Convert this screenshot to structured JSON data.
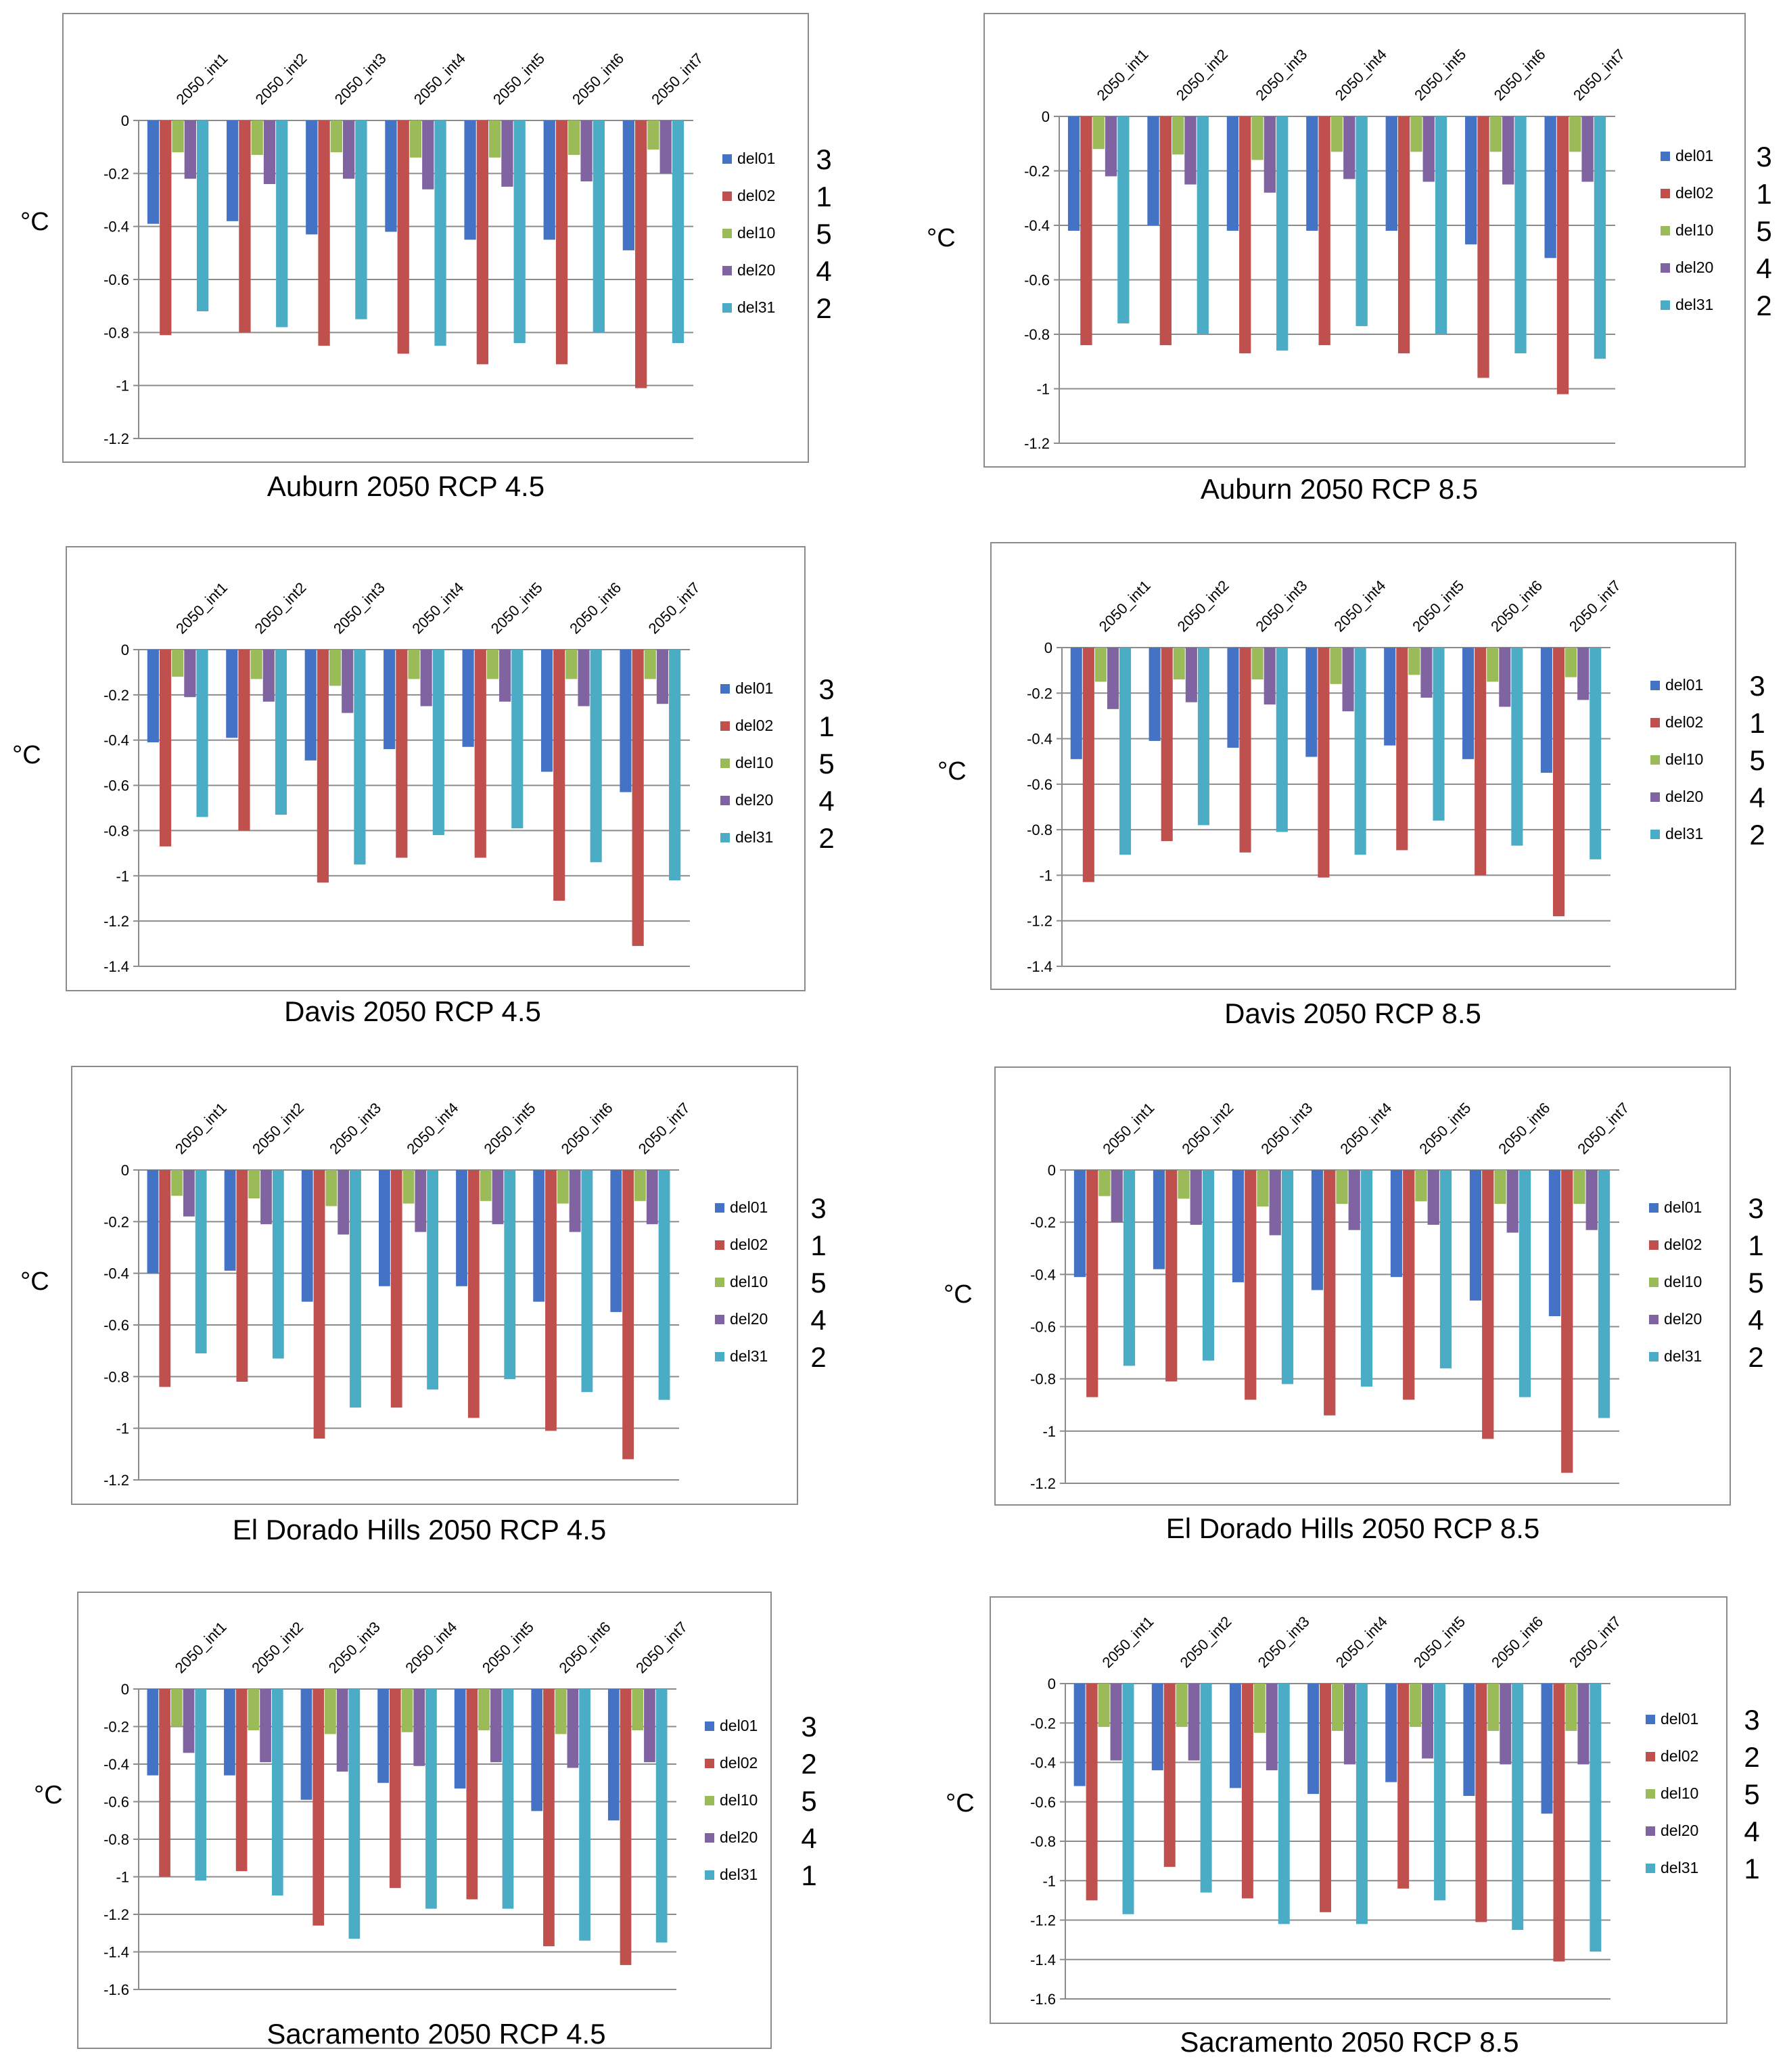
{
  "figure": {
    "colors": {
      "del01": "#4472C4",
      "del02": "#C0504D",
      "del10": "#9BBB59",
      "del20": "#8064A2",
      "del31": "#4BACC6",
      "grid": "#8C8C8C",
      "border": "#8C8C8C",
      "text": "#000000"
    }
  },
  "chart_data": [
    {
      "type": "bar",
      "title": "Auburn 2050 RCP 4.5",
      "ylabel": "°C",
      "categories": [
        "2050_int1",
        "2050_int2",
        "2050_int3",
        "2050_int4",
        "2050_int5",
        "2050_int6",
        "2050_int7"
      ],
      "ylim": [
        -1.2,
        0
      ],
      "ystep": 0.2,
      "ticks": [
        "0",
        "-0.2",
        "-0.4",
        "-0.6",
        "-0.8",
        "-1",
        "-1.2"
      ],
      "series": [
        {
          "name": "del01",
          "rank": "3",
          "values": [
            -0.39,
            -0.38,
            -0.43,
            -0.42,
            -0.45,
            -0.45,
            -0.49
          ]
        },
        {
          "name": "del02",
          "rank": "1",
          "values": [
            -0.81,
            -0.8,
            -0.85,
            -0.88,
            -0.92,
            -0.92,
            -1.01
          ]
        },
        {
          "name": "del10",
          "rank": "5",
          "values": [
            -0.12,
            -0.13,
            -0.12,
            -0.14,
            -0.14,
            -0.13,
            -0.11
          ]
        },
        {
          "name": "del20",
          "rank": "4",
          "values": [
            -0.22,
            -0.24,
            -0.22,
            -0.26,
            -0.25,
            -0.23,
            -0.2
          ]
        },
        {
          "name": "del31",
          "rank": "2",
          "values": [
            -0.72,
            -0.78,
            -0.75,
            -0.85,
            -0.84,
            -0.8,
            -0.84
          ]
        }
      ]
    },
    {
      "type": "bar",
      "title": "Auburn 2050 RCP 8.5",
      "ylabel": "°C",
      "categories": [
        "2050_int1",
        "2050_int2",
        "2050_int3",
        "2050_int4",
        "2050_int5",
        "2050_int6",
        "2050_int7"
      ],
      "ylim": [
        -1.2,
        0
      ],
      "ystep": 0.2,
      "ticks": [
        "0",
        "-0.2",
        "-0.4",
        "-0.6",
        "-0.8",
        "-1",
        "-1.2"
      ],
      "series": [
        {
          "name": "del01",
          "rank": "3",
          "values": [
            -0.42,
            -0.4,
            -0.42,
            -0.42,
            -0.42,
            -0.47,
            -0.52
          ]
        },
        {
          "name": "del02",
          "rank": "1",
          "values": [
            -0.84,
            -0.84,
            -0.87,
            -0.84,
            -0.87,
            -0.96,
            -1.02
          ]
        },
        {
          "name": "del10",
          "rank": "5",
          "values": [
            -0.12,
            -0.14,
            -0.16,
            -0.13,
            -0.13,
            -0.13,
            -0.13
          ]
        },
        {
          "name": "del20",
          "rank": "4",
          "values": [
            -0.22,
            -0.25,
            -0.28,
            -0.23,
            -0.24,
            -0.25,
            -0.24
          ]
        },
        {
          "name": "del31",
          "rank": "2",
          "values": [
            -0.76,
            -0.8,
            -0.86,
            -0.77,
            -0.8,
            -0.87,
            -0.89
          ]
        }
      ]
    },
    {
      "type": "bar",
      "title": "Davis 2050 RCP 4.5",
      "ylabel": "°C",
      "categories": [
        "2050_int1",
        "2050_int2",
        "2050_int3",
        "2050_int4",
        "2050_int5",
        "2050_int6",
        "2050_int7"
      ],
      "ylim": [
        -1.4,
        0
      ],
      "ystep": 0.2,
      "ticks": [
        "0",
        "-0.2",
        "-0.4",
        "-0.6",
        "-0.8",
        "-1",
        "-1.2",
        "-1.4"
      ],
      "series": [
        {
          "name": "del01",
          "rank": "3",
          "values": [
            -0.41,
            -0.39,
            -0.49,
            -0.44,
            -0.43,
            -0.54,
            -0.63
          ]
        },
        {
          "name": "del02",
          "rank": "1",
          "values": [
            -0.87,
            -0.8,
            -1.03,
            -0.92,
            -0.92,
            -1.11,
            -1.31
          ]
        },
        {
          "name": "del10",
          "rank": "5",
          "values": [
            -0.12,
            -0.13,
            -0.16,
            -0.13,
            -0.13,
            -0.13,
            -0.13
          ]
        },
        {
          "name": "del20",
          "rank": "4",
          "values": [
            -0.21,
            -0.23,
            -0.28,
            -0.25,
            -0.23,
            -0.25,
            -0.24
          ]
        },
        {
          "name": "del31",
          "rank": "2",
          "values": [
            -0.74,
            -0.73,
            -0.95,
            -0.82,
            -0.79,
            -0.94,
            -1.02
          ]
        }
      ]
    },
    {
      "type": "bar",
      "title": "Davis 2050 RCP 8.5",
      "ylabel": "°C",
      "categories": [
        "2050_int1",
        "2050_int2",
        "2050_int3",
        "2050_int4",
        "2050_int5",
        "2050_int6",
        "2050_int7"
      ],
      "ylim": [
        -1.4,
        0
      ],
      "ystep": 0.2,
      "ticks": [
        "0",
        "-0.2",
        "-0.4",
        "-0.6",
        "-0.8",
        "-1",
        "-1.2",
        "-1.4"
      ],
      "series": [
        {
          "name": "del01",
          "rank": "3",
          "values": [
            -0.49,
            -0.41,
            -0.44,
            -0.48,
            -0.43,
            -0.49,
            -0.55
          ]
        },
        {
          "name": "del02",
          "rank": "1",
          "values": [
            -1.03,
            -0.85,
            -0.9,
            -1.01,
            -0.89,
            -1.0,
            -1.18
          ]
        },
        {
          "name": "del10",
          "rank": "5",
          "values": [
            -0.15,
            -0.14,
            -0.14,
            -0.16,
            -0.12,
            -0.15,
            -0.13
          ]
        },
        {
          "name": "del20",
          "rank": "4",
          "values": [
            -0.27,
            -0.24,
            -0.25,
            -0.28,
            -0.22,
            -0.26,
            -0.23
          ]
        },
        {
          "name": "del31",
          "rank": "2",
          "values": [
            -0.91,
            -0.78,
            -0.81,
            -0.91,
            -0.76,
            -0.87,
            -0.93
          ]
        }
      ]
    },
    {
      "type": "bar",
      "title": "El Dorado Hills 2050 RCP 4.5",
      "ylabel": "°C",
      "categories": [
        "2050_int1",
        "2050_int2",
        "2050_int3",
        "2050_int4",
        "2050_int5",
        "2050_int6",
        "2050_int7"
      ],
      "ylim": [
        -1.2,
        0
      ],
      "ystep": 0.2,
      "ticks": [
        "0",
        "-0.2",
        "-0.4",
        "-0.6",
        "-0.8",
        "-1",
        "-1.2"
      ],
      "series": [
        {
          "name": "del01",
          "rank": "3",
          "values": [
            -0.4,
            -0.39,
            -0.51,
            -0.45,
            -0.45,
            -0.51,
            -0.55
          ]
        },
        {
          "name": "del02",
          "rank": "1",
          "values": [
            -0.84,
            -0.82,
            -1.04,
            -0.92,
            -0.96,
            -1.01,
            -1.12
          ]
        },
        {
          "name": "del10",
          "rank": "5",
          "values": [
            -0.1,
            -0.11,
            -0.14,
            -0.13,
            -0.12,
            -0.13,
            -0.12
          ]
        },
        {
          "name": "del20",
          "rank": "4",
          "values": [
            -0.18,
            -0.21,
            -0.25,
            -0.24,
            -0.21,
            -0.24,
            -0.21
          ]
        },
        {
          "name": "del31",
          "rank": "2",
          "values": [
            -0.71,
            -0.73,
            -0.92,
            -0.85,
            -0.81,
            -0.86,
            -0.89
          ]
        }
      ]
    },
    {
      "type": "bar",
      "title": "El Dorado Hills 2050 RCP 8.5",
      "ylabel": "°C",
      "categories": [
        "2050_int1",
        "2050_int2",
        "2050_int3",
        "2050_int4",
        "2050_int5",
        "2050_int6",
        "2050_int7"
      ],
      "ylim": [
        -1.2,
        0
      ],
      "ystep": 0.2,
      "ticks": [
        "0",
        "-0.2",
        "-0.4",
        "-0.6",
        "-0.8",
        "-1",
        "-1.2"
      ],
      "series": [
        {
          "name": "del01",
          "rank": "3",
          "values": [
            -0.41,
            -0.38,
            -0.43,
            -0.46,
            -0.41,
            -0.5,
            -0.56
          ]
        },
        {
          "name": "del02",
          "rank": "1",
          "values": [
            -0.87,
            -0.81,
            -0.88,
            -0.94,
            -0.88,
            -1.03,
            -1.16
          ]
        },
        {
          "name": "del10",
          "rank": "5",
          "values": [
            -0.1,
            -0.11,
            -0.14,
            -0.13,
            -0.12,
            -0.13,
            -0.13
          ]
        },
        {
          "name": "del20",
          "rank": "4",
          "values": [
            -0.2,
            -0.21,
            -0.25,
            -0.23,
            -0.21,
            -0.24,
            -0.23
          ]
        },
        {
          "name": "del31",
          "rank": "2",
          "values": [
            -0.75,
            -0.73,
            -0.82,
            -0.83,
            -0.76,
            -0.87,
            -0.95
          ]
        }
      ]
    },
    {
      "type": "bar",
      "title": "Sacramento 2050 RCP 4.5",
      "ylabel": "°C",
      "categories": [
        "2050_int1",
        "2050_int2",
        "2050_int3",
        "2050_int4",
        "2050_int5",
        "2050_int6",
        "2050_int7"
      ],
      "ylim": [
        -1.6,
        0
      ],
      "ystep": 0.2,
      "ticks": [
        "0",
        "-0.2",
        "-0.4",
        "-0.6",
        "-0.8",
        "-1",
        "-1.2",
        "-1.4",
        "-1.6"
      ],
      "series": [
        {
          "name": "del01",
          "rank": "3",
          "values": [
            -0.46,
            -0.46,
            -0.59,
            -0.5,
            -0.53,
            -0.65,
            -0.7
          ]
        },
        {
          "name": "del02",
          "rank": "2",
          "values": [
            -1.0,
            -0.97,
            -1.26,
            -1.06,
            -1.12,
            -1.37,
            -1.47
          ]
        },
        {
          "name": "del10",
          "rank": "5",
          "values": [
            -0.2,
            -0.22,
            -0.24,
            -0.23,
            -0.22,
            -0.24,
            -0.22
          ]
        },
        {
          "name": "del20",
          "rank": "4",
          "values": [
            -0.34,
            -0.39,
            -0.44,
            -0.41,
            -0.39,
            -0.42,
            -0.39
          ]
        },
        {
          "name": "del31",
          "rank": "1",
          "values": [
            -1.02,
            -1.1,
            -1.33,
            -1.17,
            -1.17,
            -1.34,
            -1.35
          ]
        }
      ]
    },
    {
      "type": "bar",
      "title": "Sacramento 2050 RCP 8.5",
      "ylabel": "°C",
      "categories": [
        "2050_int1",
        "2050_int2",
        "2050_int3",
        "2050_int4",
        "2050_int5",
        "2050_int6",
        "2050_int7"
      ],
      "ylim": [
        -1.6,
        0
      ],
      "ystep": 0.2,
      "ticks": [
        "0",
        "-0.2",
        "-0.4",
        "-0.6",
        "-0.8",
        "-1",
        "-1.2",
        "-1.4",
        "-1.6"
      ],
      "series": [
        {
          "name": "del01",
          "rank": "3",
          "values": [
            -0.52,
            -0.44,
            -0.53,
            -0.56,
            -0.5,
            -0.57,
            -0.66
          ]
        },
        {
          "name": "del02",
          "rank": "2",
          "values": [
            -1.1,
            -0.93,
            -1.09,
            -1.16,
            -1.04,
            -1.21,
            -1.41
          ]
        },
        {
          "name": "del10",
          "rank": "5",
          "values": [
            -0.22,
            -0.22,
            -0.25,
            -0.24,
            -0.22,
            -0.24,
            -0.24
          ]
        },
        {
          "name": "del20",
          "rank": "4",
          "values": [
            -0.39,
            -0.39,
            -0.44,
            -0.41,
            -0.38,
            -0.41,
            -0.41
          ]
        },
        {
          "name": "del31",
          "rank": "1",
          "values": [
            -1.17,
            -1.06,
            -1.22,
            -1.22,
            -1.1,
            -1.25,
            -1.36
          ]
        }
      ]
    }
  ]
}
